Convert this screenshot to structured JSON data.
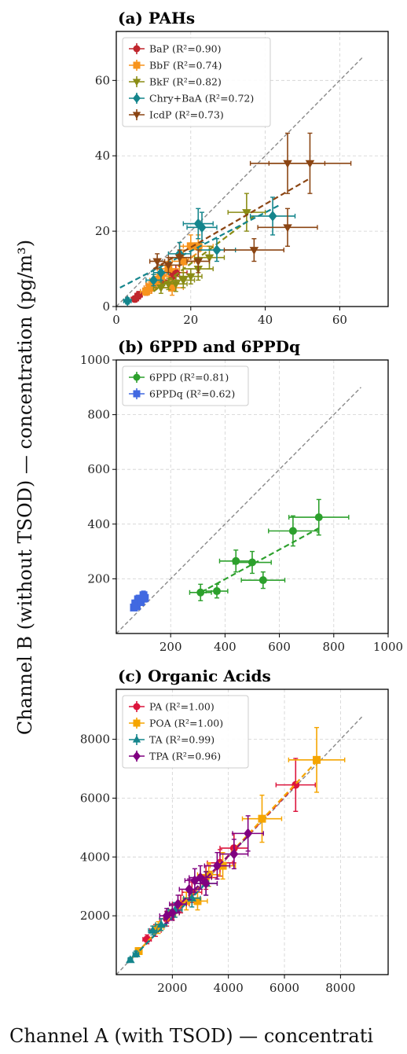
{
  "ylabel": "Channel B (without TSOD) — concentration (pg/m³)",
  "xlabel": "Channel A (with TSOD) — concentrati",
  "chart_data": [
    {
      "type": "scatter",
      "title": "(a) PAHs",
      "xlim": [
        0,
        73
      ],
      "ylim": [
        0,
        73
      ],
      "xticks": [
        0,
        20,
        40,
        60
      ],
      "yticks": [
        0,
        20,
        40,
        60
      ],
      "grid": true,
      "legend": "top-left",
      "identity_line": [
        0,
        66
      ],
      "series": [
        {
          "name": "BaP (R²=0.90)",
          "color": "#c0262d",
          "marker": "circle",
          "points": [
            [
              5,
              2,
              1,
              0.8
            ],
            [
              6,
              3,
              1,
              1
            ],
            [
              8,
              4,
              1.5,
              1
            ],
            [
              9,
              5,
              1.5,
              1
            ],
            [
              12,
              7,
              2,
              1.5
            ],
            [
              10,
              6,
              2,
              1.5
            ],
            [
              15,
              8,
              3,
              2
            ],
            [
              16,
              9,
              3,
              2
            ]
          ],
          "fit": [
            [
              4,
              2
            ],
            [
              17,
              9
            ]
          ]
        },
        {
          "name": "BbF (R²=0.74)",
          "color": "#f7941d",
          "marker": "square",
          "points": [
            [
              8,
              4,
              1.5,
              1
            ],
            [
              9,
              5,
              1.5,
              1.5
            ],
            [
              10,
              6,
              2,
              1.5
            ],
            [
              11,
              7,
              2,
              1.5
            ],
            [
              12,
              8,
              2,
              2
            ],
            [
              14,
              10,
              3,
              2
            ],
            [
              15,
              5,
              3,
              2
            ],
            [
              18,
              12,
              3,
              3
            ],
            [
              20,
              16,
              3,
              3
            ],
            [
              22,
              16,
              4,
              3
            ]
          ],
          "fit": [
            [
              7,
              4
            ],
            [
              23,
              15
            ]
          ]
        },
        {
          "name": "BkF (R²=0.82)",
          "color": "#8a8c14",
          "marker": "triangle-down",
          "points": [
            [
              12,
              5,
              2,
              1.5
            ],
            [
              14,
              6,
              2,
              1.5
            ],
            [
              16,
              6,
              3,
              2
            ],
            [
              18,
              7,
              3,
              2
            ],
            [
              20,
              8,
              3,
              2
            ],
            [
              22,
              10,
              4,
              3
            ],
            [
              25,
              13,
              4,
              3
            ],
            [
              35,
              25,
              5,
              5
            ]
          ],
          "fit": [
            [
              10,
              4
            ],
            [
              37,
              24
            ]
          ]
        },
        {
          "name": "Chry+BaA (R²=0.72)",
          "color": "#14858c",
          "marker": "diamond",
          "points": [
            [
              3,
              1.5,
              1,
              0.8
            ],
            [
              10,
              7,
              2,
              1.5
            ],
            [
              12,
              9,
              2,
              2
            ],
            [
              17,
              14,
              3,
              3
            ],
            [
              22,
              22,
              4,
              4
            ],
            [
              23,
              21,
              4,
              4
            ],
            [
              27,
              15,
              5,
              3
            ],
            [
              42,
              24,
              6,
              5
            ]
          ],
          "fit": [
            [
              1,
              5
            ],
            [
              44,
              27
            ]
          ]
        },
        {
          "name": "IcdP (R²=0.73)",
          "color": "#8b4513",
          "marker": "triangle-down",
          "points": [
            [
              11,
              12,
              2,
              2
            ],
            [
              14,
              11,
              3,
              2
            ],
            [
              17,
              13,
              3,
              2
            ],
            [
              22,
              12,
              3,
              3
            ],
            [
              37,
              15,
              8,
              3
            ],
            [
              46,
              21,
              8,
              5
            ],
            [
              46,
              38,
              10,
              8
            ],
            [
              52,
              38,
              11,
              8
            ]
          ],
          "fit": [
            [
              10,
              10
            ],
            [
              52,
              34
            ]
          ]
        }
      ]
    },
    {
      "type": "scatter",
      "title": "(b) 6PPD and 6PPDq",
      "xlim": [
        0,
        1000
      ],
      "ylim": [
        0,
        1000
      ],
      "xticks": [
        200,
        400,
        600,
        800,
        1000
      ],
      "yticks": [
        200,
        400,
        600,
        800,
        1000
      ],
      "grid": true,
      "legend": "top-left",
      "identity_line": [
        0,
        900
      ],
      "series": [
        {
          "name": "6PPD (R²=0.81)",
          "color": "#2ca02c",
          "marker": "circle",
          "points": [
            [
              310,
              150,
              40,
              30
            ],
            [
              370,
              155,
              40,
              25
            ],
            [
              440,
              265,
              60,
              40
            ],
            [
              500,
              260,
              70,
              40
            ],
            [
              540,
              195,
              80,
              30
            ],
            [
              650,
              375,
              90,
              55
            ],
            [
              745,
              425,
              110,
              65
            ]
          ],
          "fit": [
            [
              310,
              150
            ],
            [
              745,
              385
            ]
          ]
        },
        {
          "name": "6PPDq (R²=0.62)",
          "color": "#4169e1",
          "marker": "square",
          "points": [
            [
              65,
              95,
              8,
              10
            ],
            [
              70,
              110,
              8,
              12
            ],
            [
              75,
              100,
              8,
              10
            ],
            [
              80,
              125,
              10,
              15
            ],
            [
              90,
              115,
              10,
              12
            ],
            [
              100,
              140,
              10,
              15
            ],
            [
              105,
              130,
              10,
              15
            ]
          ],
          "fit": [
            [
              65,
              100
            ],
            [
              105,
              135
            ]
          ]
        }
      ]
    },
    {
      "type": "scatter",
      "title": "(c) Organic Acids",
      "xlim": [
        0,
        9700
      ],
      "ylim": [
        0,
        9700
      ],
      "xticks": [
        2000,
        4000,
        6000,
        8000
      ],
      "yticks": [
        2000,
        4000,
        6000,
        8000
      ],
      "grid": true,
      "legend": "top-left",
      "identity_line": [
        0,
        8800
      ],
      "series": [
        {
          "name": "PA (R²=1.00)",
          "color": "#dc143c",
          "marker": "circle",
          "points": [
            [
              800,
              800,
              100,
              100
            ],
            [
              1100,
              1200,
              150,
              150
            ],
            [
              1400,
              1500,
              200,
              200
            ],
            [
              1800,
              1900,
              250,
              250
            ],
            [
              2300,
              2400,
              300,
              300
            ],
            [
              2700,
              2800,
              350,
              350
            ],
            [
              3200,
              3300,
              400,
              400
            ],
            [
              3700,
              3800,
              450,
              450
            ],
            [
              4200,
              4300,
              500,
              500
            ],
            [
              6400,
              6450,
              700,
              900
            ]
          ],
          "fit": [
            [
              500,
              500
            ],
            [
              6400,
              6450
            ]
          ]
        },
        {
          "name": "POA (R²=1.00)",
          "color": "#f5a500",
          "marker": "square",
          "points": [
            [
              800,
              800,
              100,
              100
            ],
            [
              1500,
              1600,
              200,
              200
            ],
            [
              2000,
              2100,
              250,
              250
            ],
            [
              2500,
              2500,
              300,
              300
            ],
            [
              2900,
              2500,
              350,
              300
            ],
            [
              3300,
              3400,
              400,
              400
            ],
            [
              3800,
              3700,
              450,
              450
            ],
            [
              5200,
              5300,
              700,
              800
            ],
            [
              7150,
              7300,
              1000,
              1100
            ]
          ],
          "fit": [
            [
              500,
              500
            ],
            [
              7200,
              7300
            ]
          ]
        },
        {
          "name": "TA (R²=0.99)",
          "color": "#14858c",
          "marker": "triangle-up",
          "points": [
            [
              500,
              500,
              80,
              80
            ],
            [
              700,
              700,
              100,
              100
            ],
            [
              1300,
              1500,
              150,
              150
            ],
            [
              1600,
              1700,
              200,
              200
            ],
            [
              2100,
              2200,
              250,
              250
            ],
            [
              2700,
              2600,
              300,
              300
            ],
            [
              3200,
              3100,
              400,
              400
            ]
          ],
          "fit": [
            [
              400,
              400
            ],
            [
              3300,
              3200
            ]
          ]
        },
        {
          "name": "TPA (R²=0.96)",
          "color": "#800080",
          "marker": "diamond",
          "points": [
            [
              1800,
              2000,
              250,
              250
            ],
            [
              2000,
              2100,
              250,
              250
            ],
            [
              2200,
              2400,
              300,
              300
            ],
            [
              2600,
              2900,
              350,
              350
            ],
            [
              2800,
              3200,
              350,
              400
            ],
            [
              3000,
              3300,
              400,
              400
            ],
            [
              3200,
              3100,
              400,
              400
            ],
            [
              3600,
              3700,
              450,
              450
            ],
            [
              4200,
              4100,
              500,
              500
            ],
            [
              4700,
              4800,
              550,
              600
            ]
          ],
          "fit": [
            [
              1700,
              1850
            ],
            [
              4800,
              4800
            ]
          ]
        }
      ]
    }
  ]
}
